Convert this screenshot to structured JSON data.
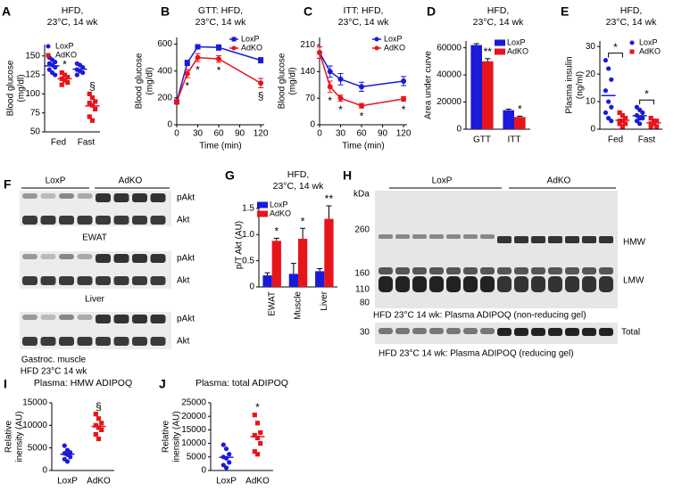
{
  "chart_data": [
    {
      "panel": "A",
      "type": "dot",
      "title": [
        "HFD,",
        "23°C, 14 wk"
      ],
      "ylabel": [
        "Blood glucose",
        "(mg/dl)"
      ],
      "categories": [
        "Fed",
        "Fast"
      ],
      "series": [
        {
          "name": "LoxP",
          "color": "#1a1adb",
          "marker": "circle",
          "values": [
            [
              148,
              145,
              142,
              140,
              138,
              135,
              132,
              128,
              125
            ],
            [
              140,
              138,
              135,
              132,
              130,
              128,
              125
            ]
          ]
        },
        {
          "name": "AdKO",
          "color": "#e8141b",
          "marker": "square",
          "values": [
            [
              128,
              125,
              122,
              120,
              118,
              115,
              112
            ],
            [
              100,
              95,
              90,
              88,
              85,
              80,
              70,
              65
            ]
          ],
          "sig": [
            "*",
            "§"
          ]
        }
      ],
      "ylim": [
        50,
        165
      ],
      "yticks": [
        50,
        75,
        100,
        125,
        150
      ],
      "legend": "upper left"
    },
    {
      "panel": "B",
      "type": "line",
      "title": [
        "GTT: HFD,",
        "23°C, 14 wk"
      ],
      "ylabel": [
        "Blood glucose",
        "(mg/dl)"
      ],
      "xlabel": "Time (min)",
      "x": [
        0,
        15,
        30,
        60,
        120
      ],
      "series": [
        {
          "name": "LoxP",
          "color": "#1a1adb",
          "marker": "square",
          "values": [
            170,
            460,
            580,
            575,
            480
          ],
          "errors": [
            15,
            20,
            15,
            20,
            20
          ]
        },
        {
          "name": "AdKO",
          "color": "#e8141b",
          "marker": "circle",
          "values": [
            170,
            380,
            500,
            490,
            310
          ],
          "errors": [
            15,
            30,
            30,
            25,
            35
          ],
          "sig": [
            null,
            "*",
            "*",
            "*",
            "§"
          ]
        }
      ],
      "xlim": [
        0,
        125
      ],
      "xticks": [
        0,
        30,
        60,
        90,
        120
      ],
      "ylim": [
        0,
        650
      ],
      "yticks": [
        0,
        200,
        400,
        600
      ],
      "legend": "upper right"
    },
    {
      "panel": "C",
      "type": "line",
      "title": [
        "ITT: HFD,",
        "23°C, 14 wk"
      ],
      "ylabel": [
        "Blood glucose",
        "(mg/dl)"
      ],
      "xlabel": "Time (min)",
      "x": [
        0,
        15,
        30,
        60,
        120
      ],
      "series": [
        {
          "name": "LoxP",
          "color": "#1a1adb",
          "marker": "circle",
          "values": [
            190,
            140,
            120,
            100,
            115
          ],
          "errors": [
            15,
            15,
            15,
            12,
            12
          ]
        },
        {
          "name": "AdKO",
          "color": "#e8141b",
          "marker": "circle",
          "values": [
            190,
            100,
            70,
            50,
            68
          ],
          "errors": [
            15,
            15,
            8,
            6,
            6
          ],
          "sig": [
            null,
            "*",
            "*",
            "*",
            "*"
          ]
        }
      ],
      "xlim": [
        0,
        125
      ],
      "xticks": [
        0,
        30,
        60,
        90,
        120
      ],
      "ylim": [
        0,
        230
      ],
      "yticks": [
        0,
        70,
        140,
        210
      ],
      "legend": "upper right"
    },
    {
      "panel": "D",
      "type": "bar",
      "title": [
        "HFD,",
        "23°C, 14 wk"
      ],
      "ylabel": [
        "Area under curve"
      ],
      "categories": [
        "GTT",
        "ITT"
      ],
      "series": [
        {
          "name": "LoxP",
          "color": "#1a1adb",
          "values": [
            62000,
            14000
          ],
          "errors": [
            1000,
            800
          ]
        },
        {
          "name": "AdKO",
          "color": "#e8141b",
          "values": [
            50000,
            9000
          ],
          "errors": [
            2000,
            600
          ],
          "sig": [
            "**",
            "*"
          ]
        }
      ],
      "ylim": [
        0,
        65000
      ],
      "yticks": [
        0,
        20000,
        40000,
        60000
      ],
      "legend": "upper right"
    },
    {
      "panel": "E",
      "type": "dot",
      "title": [
        "HFD,",
        "23°C, 14 wk"
      ],
      "ylabel": [
        "Plasma insulin",
        "(ng/ml)"
      ],
      "categories": [
        "Fed",
        "Fast"
      ],
      "series": [
        {
          "name": "LoxP",
          "color": "#1a1adb",
          "marker": "circle",
          "values": [
            [
              25,
              22,
              18,
              14,
              10,
              8,
              6,
              4,
              3
            ],
            [
              8,
              7,
              6,
              5,
              4,
              4,
              3,
              2
            ]
          ]
        },
        {
          "name": "AdKO",
          "color": "#e8141b",
          "marker": "square",
          "values": [
            [
              6,
              5,
              4,
              3,
              3,
              2,
              2,
              1
            ],
            [
              4,
              3,
              3,
              2,
              2,
              1,
              1
            ]
          ]
        }
      ],
      "bracket_sig": [
        "*",
        "*"
      ],
      "ylim": [
        0,
        32
      ],
      "yticks": [
        0,
        10,
        20,
        30
      ],
      "legend": "upper right"
    },
    {
      "panel": "G",
      "type": "bar",
      "title": [
        "HFD,",
        "23°C, 14 wk"
      ],
      "ylabel": [
        "p/T Akt (AU)"
      ],
      "categories": [
        "EWAT",
        "Muscle",
        "Liver"
      ],
      "series": [
        {
          "name": "LoxP",
          "color": "#1a1adb",
          "values": [
            0.22,
            0.25,
            0.3
          ],
          "errors": [
            0.05,
            0.2,
            0.05
          ]
        },
        {
          "name": "AdKO",
          "color": "#e8141b",
          "values": [
            0.88,
            0.92,
            1.3
          ],
          "errors": [
            0.05,
            0.2,
            0.25
          ],
          "sig": [
            "*",
            "*",
            "**"
          ]
        }
      ],
      "ylim": [
        0,
        1.6
      ],
      "yticks": [
        0,
        0.5,
        {
          "value": 1,
          "label": "1.0"
        },
        1.5
      ],
      "legend": "upper left"
    },
    {
      "panel": "I",
      "type": "dot",
      "title": [
        "Plasma: HMW ADIPOQ"
      ],
      "ylabel": [
        "Relative",
        "inensity (AU)"
      ],
      "categories": [
        "LoxP",
        "AdKO"
      ],
      "values": [
        [
          5500,
          4500,
          4000,
          3800,
          3500,
          3000,
          2500,
          2000
        ],
        [
          12500,
          11500,
          10500,
          10000,
          9500,
          9000,
          8000,
          7000
        ]
      ],
      "colors": [
        "#1a1adb",
        "#e8141b"
      ],
      "markers": [
        "circle",
        "square"
      ],
      "sig": [
        null,
        "§"
      ],
      "ylim": [
        0,
        15000
      ],
      "yticks": [
        0,
        5000,
        10000,
        15000
      ]
    },
    {
      "panel": "J",
      "type": "dot",
      "title": [
        "Plasma: total ADIPOQ"
      ],
      "ylabel": [
        "Relative",
        "inensity (AU)"
      ],
      "categories": [
        "LoxP",
        "AdKO"
      ],
      "values": [
        [
          9500,
          8000,
          6000,
          5000,
          4500,
          3000,
          2000,
          1000
        ],
        [
          20500,
          17500,
          14000,
          13000,
          12000,
          10000,
          7000,
          6000
        ]
      ],
      "colors": [
        "#1a1adb",
        "#e8141b"
      ],
      "markers": [
        "circle",
        "square"
      ],
      "sig": [
        null,
        "*"
      ],
      "ylim": [
        0,
        25000
      ],
      "yticks": [
        0,
        5000,
        10000,
        15000,
        20000,
        25000
      ]
    }
  ],
  "blots": {
    "F": {
      "panel": "F",
      "groups": [
        "LoxP",
        "AdKO"
      ],
      "rows": [
        "pAkt",
        "Akt",
        "pAkt",
        "Akt",
        "pAkt",
        "Akt"
      ],
      "tissues": [
        "EWAT",
        "Liver",
        "Gastroc. muscle"
      ],
      "caption": "HFD 23°C 14 wk"
    },
    "H": {
      "panel": "H",
      "groups": [
        "LoxP",
        "AdKO"
      ],
      "unit": "kDa",
      "markers": [
        260,
        160,
        110,
        80,
        30
      ],
      "bands": [
        "HMW",
        "LMW",
        "Total"
      ],
      "captions": [
        "HFD 23°C 14 wk: Plasma ADIPOQ (non-reducing gel)",
        "HFD 23°C 14 wk: Plasma ADIPOQ (reducing gel)"
      ]
    }
  }
}
